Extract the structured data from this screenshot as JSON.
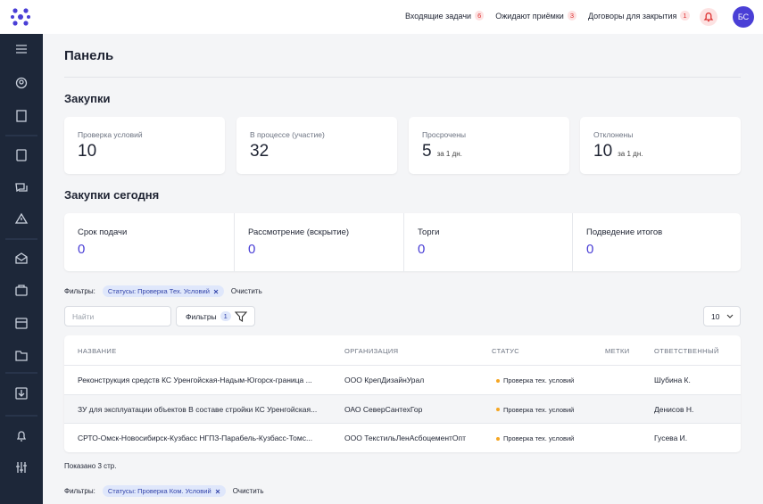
{
  "header": {
    "nav": [
      {
        "label": "Входящие задачи",
        "count": 6
      },
      {
        "label": "Ожидают приёмки",
        "count": 3
      },
      {
        "label": "Договоры для закрытия",
        "count": 1
      }
    ],
    "avatar": "БС"
  },
  "page": {
    "title": "Панель"
  },
  "purchases": {
    "title": "Закупки",
    "cards": [
      {
        "label": "Проверка условий",
        "value": 10
      },
      {
        "label": "В процессе (участие)",
        "value": 32
      },
      {
        "label": "Просрочены",
        "value": 5,
        "note": "за 1 дн."
      },
      {
        "label": "Отклонены",
        "value": 10,
        "note": "за 1 дн."
      }
    ]
  },
  "today": {
    "title": "Закупки сегодня",
    "cards": [
      {
        "label": "Срок подачи",
        "value": 0
      },
      {
        "label": "Рассмотрение (вскрытие)",
        "value": 0
      },
      {
        "label": "Торги",
        "value": 0
      },
      {
        "label": "Подведение итогов",
        "value": 0
      }
    ]
  },
  "filters": {
    "label": "Фильтры:",
    "chip": "Статусы: Проверка Тех. Условий",
    "clear": "Очистить"
  },
  "toolbar": {
    "search_placeholder": "Найти",
    "filter_button": "Фильтры",
    "filter_count": 1,
    "page_size": 10
  },
  "table": {
    "columns": [
      "НАЗВАНИЕ",
      "ОРГАНИЗАЦИЯ",
      "СТАТУС",
      "МЕТКИ",
      "ОТВЕТСТВЕННЫЙ"
    ],
    "rows": [
      {
        "name": "Реконструкция средств КС Уренгойская-Надым-Югорск-граница ...",
        "organization": "ООО КрепДизайнУрал",
        "status": "Проверка тех. условий",
        "responsible": "Шубина К."
      },
      {
        "name": "ЗУ для эксплуатации объектов В составе стройки КС Уренгойская...",
        "organization": "ОАО СеверСантехГор",
        "status": "Проверка тех. условий",
        "responsible": "Денисов Н."
      },
      {
        "name": "СРТО-Омск-Новосибирск-Кузбасс НГПЗ-Парабель-Кузбасс-Томс...",
        "organization": "ООО ТекстильЛенАсбоцементОпт",
        "status": "Проверка тех. условий",
        "responsible": "Гусева И."
      }
    ]
  },
  "footer": "Показано 3 стр.",
  "filters2": {
    "label": "Фильтры:",
    "chip": "Статусы: Проверка Ком. Условий",
    "clear": "Очистить"
  }
}
